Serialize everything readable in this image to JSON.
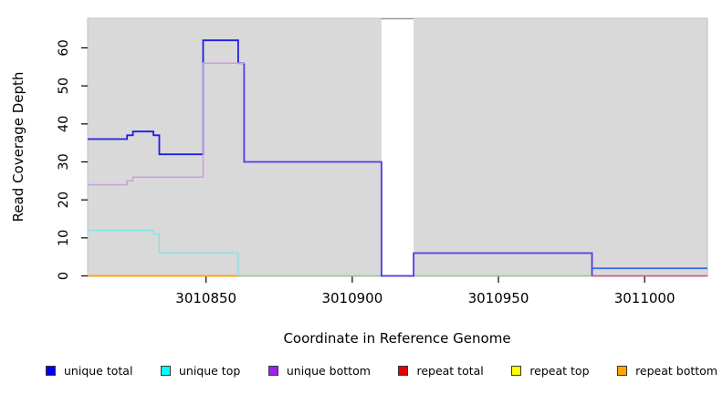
{
  "chart_data": {
    "type": "line",
    "subtype": "step-coverage-plot",
    "title": "",
    "xlabel": "Coordinate in Reference Genome",
    "ylabel": "Read Coverage Depth",
    "xlim": [
      3010809.5,
      3011021.5
    ],
    "ylim": [
      0,
      67.8
    ],
    "x_ticks": [
      3010850,
      3010900,
      3010950,
      3011000
    ],
    "y_ticks": [
      0,
      10,
      20,
      30,
      40,
      50,
      60
    ],
    "grid": false,
    "plot_bg": "#d9d9d9",
    "plot_border": "#c3c3c3",
    "gap_region": {
      "from": 3010910,
      "to": 3010921,
      "fill": "#ffffff",
      "top_edge": "#999999"
    },
    "legend_position": "bottom",
    "legend": [
      {
        "label": "unique total",
        "color": "#0000ee"
      },
      {
        "label": "unique top",
        "color": "#00ffff"
      },
      {
        "label": "unique bottom",
        "color": "#a020f0"
      },
      {
        "label": "repeat total",
        "color": "#e60000"
      },
      {
        "label": "repeat top",
        "color": "#ffff00"
      },
      {
        "label": "repeat bottom",
        "color": "#ffa500"
      }
    ],
    "series": [
      {
        "name": "zero-line-green",
        "color": "#8fce8f",
        "width": 1.5,
        "points": [
          [
            3010861,
            0
          ],
          [
            3010982,
            0
          ]
        ]
      },
      {
        "name": "repeat-bottom-zero",
        "color": "#ffa125",
        "width": 1.9,
        "points": [
          [
            3010809.5,
            0
          ],
          [
            3010861,
            0
          ]
        ]
      },
      {
        "name": "repeat-total-zero",
        "color": "#d8506e",
        "width": 1.5,
        "points": [
          [
            3010982,
            0
          ],
          [
            3011021.5,
            0
          ]
        ]
      },
      {
        "name": "unique-total-bottom-overlap",
        "color": "#5a35e6",
        "width": 1.8,
        "points": [
          [
            3010863,
            56
          ],
          [
            3010863,
            30
          ],
          [
            3010910,
            30
          ],
          [
            3010910,
            0
          ],
          [
            3010921,
            0
          ],
          [
            3010921,
            6
          ],
          [
            3010982,
            6
          ],
          [
            3010982,
            0
          ]
        ]
      },
      {
        "name": "unique-total",
        "color": "#1e1ee8",
        "width": 1.8,
        "points": [
          [
            3010809.5,
            36
          ],
          [
            3010823,
            36
          ],
          [
            3010823,
            37
          ],
          [
            3010825,
            37
          ],
          [
            3010825,
            38
          ],
          [
            3010832,
            38
          ],
          [
            3010832,
            37
          ],
          [
            3010834,
            37
          ],
          [
            3010834,
            32
          ],
          [
            3010849,
            32
          ],
          [
            3010849,
            62
          ],
          [
            3010861,
            62
          ],
          [
            3010861,
            56
          ],
          [
            3010863,
            56
          ]
        ]
      },
      {
        "name": "unique-total-right",
        "color": "#3a6ff0",
        "width": 1.8,
        "points": [
          [
            3010982,
            2
          ],
          [
            3011021.5,
            2
          ]
        ]
      },
      {
        "name": "unique-top",
        "color": "#7de8e8",
        "width": 1.5,
        "points": [
          [
            3010809.5,
            12
          ],
          [
            3010832,
            12
          ],
          [
            3010832,
            11
          ],
          [
            3010834,
            11
          ],
          [
            3010834,
            6
          ],
          [
            3010861,
            6
          ],
          [
            3010861,
            0
          ]
        ]
      },
      {
        "name": "unique-bottom",
        "color": "#c9a0dc",
        "width": 1.5,
        "points": [
          [
            3010809.5,
            24
          ],
          [
            3010823,
            24
          ],
          [
            3010823,
            25
          ],
          [
            3010825,
            25
          ],
          [
            3010825,
            26
          ],
          [
            3010849,
            26
          ],
          [
            3010849,
            56
          ],
          [
            3010863,
            56
          ]
        ]
      }
    ]
  }
}
